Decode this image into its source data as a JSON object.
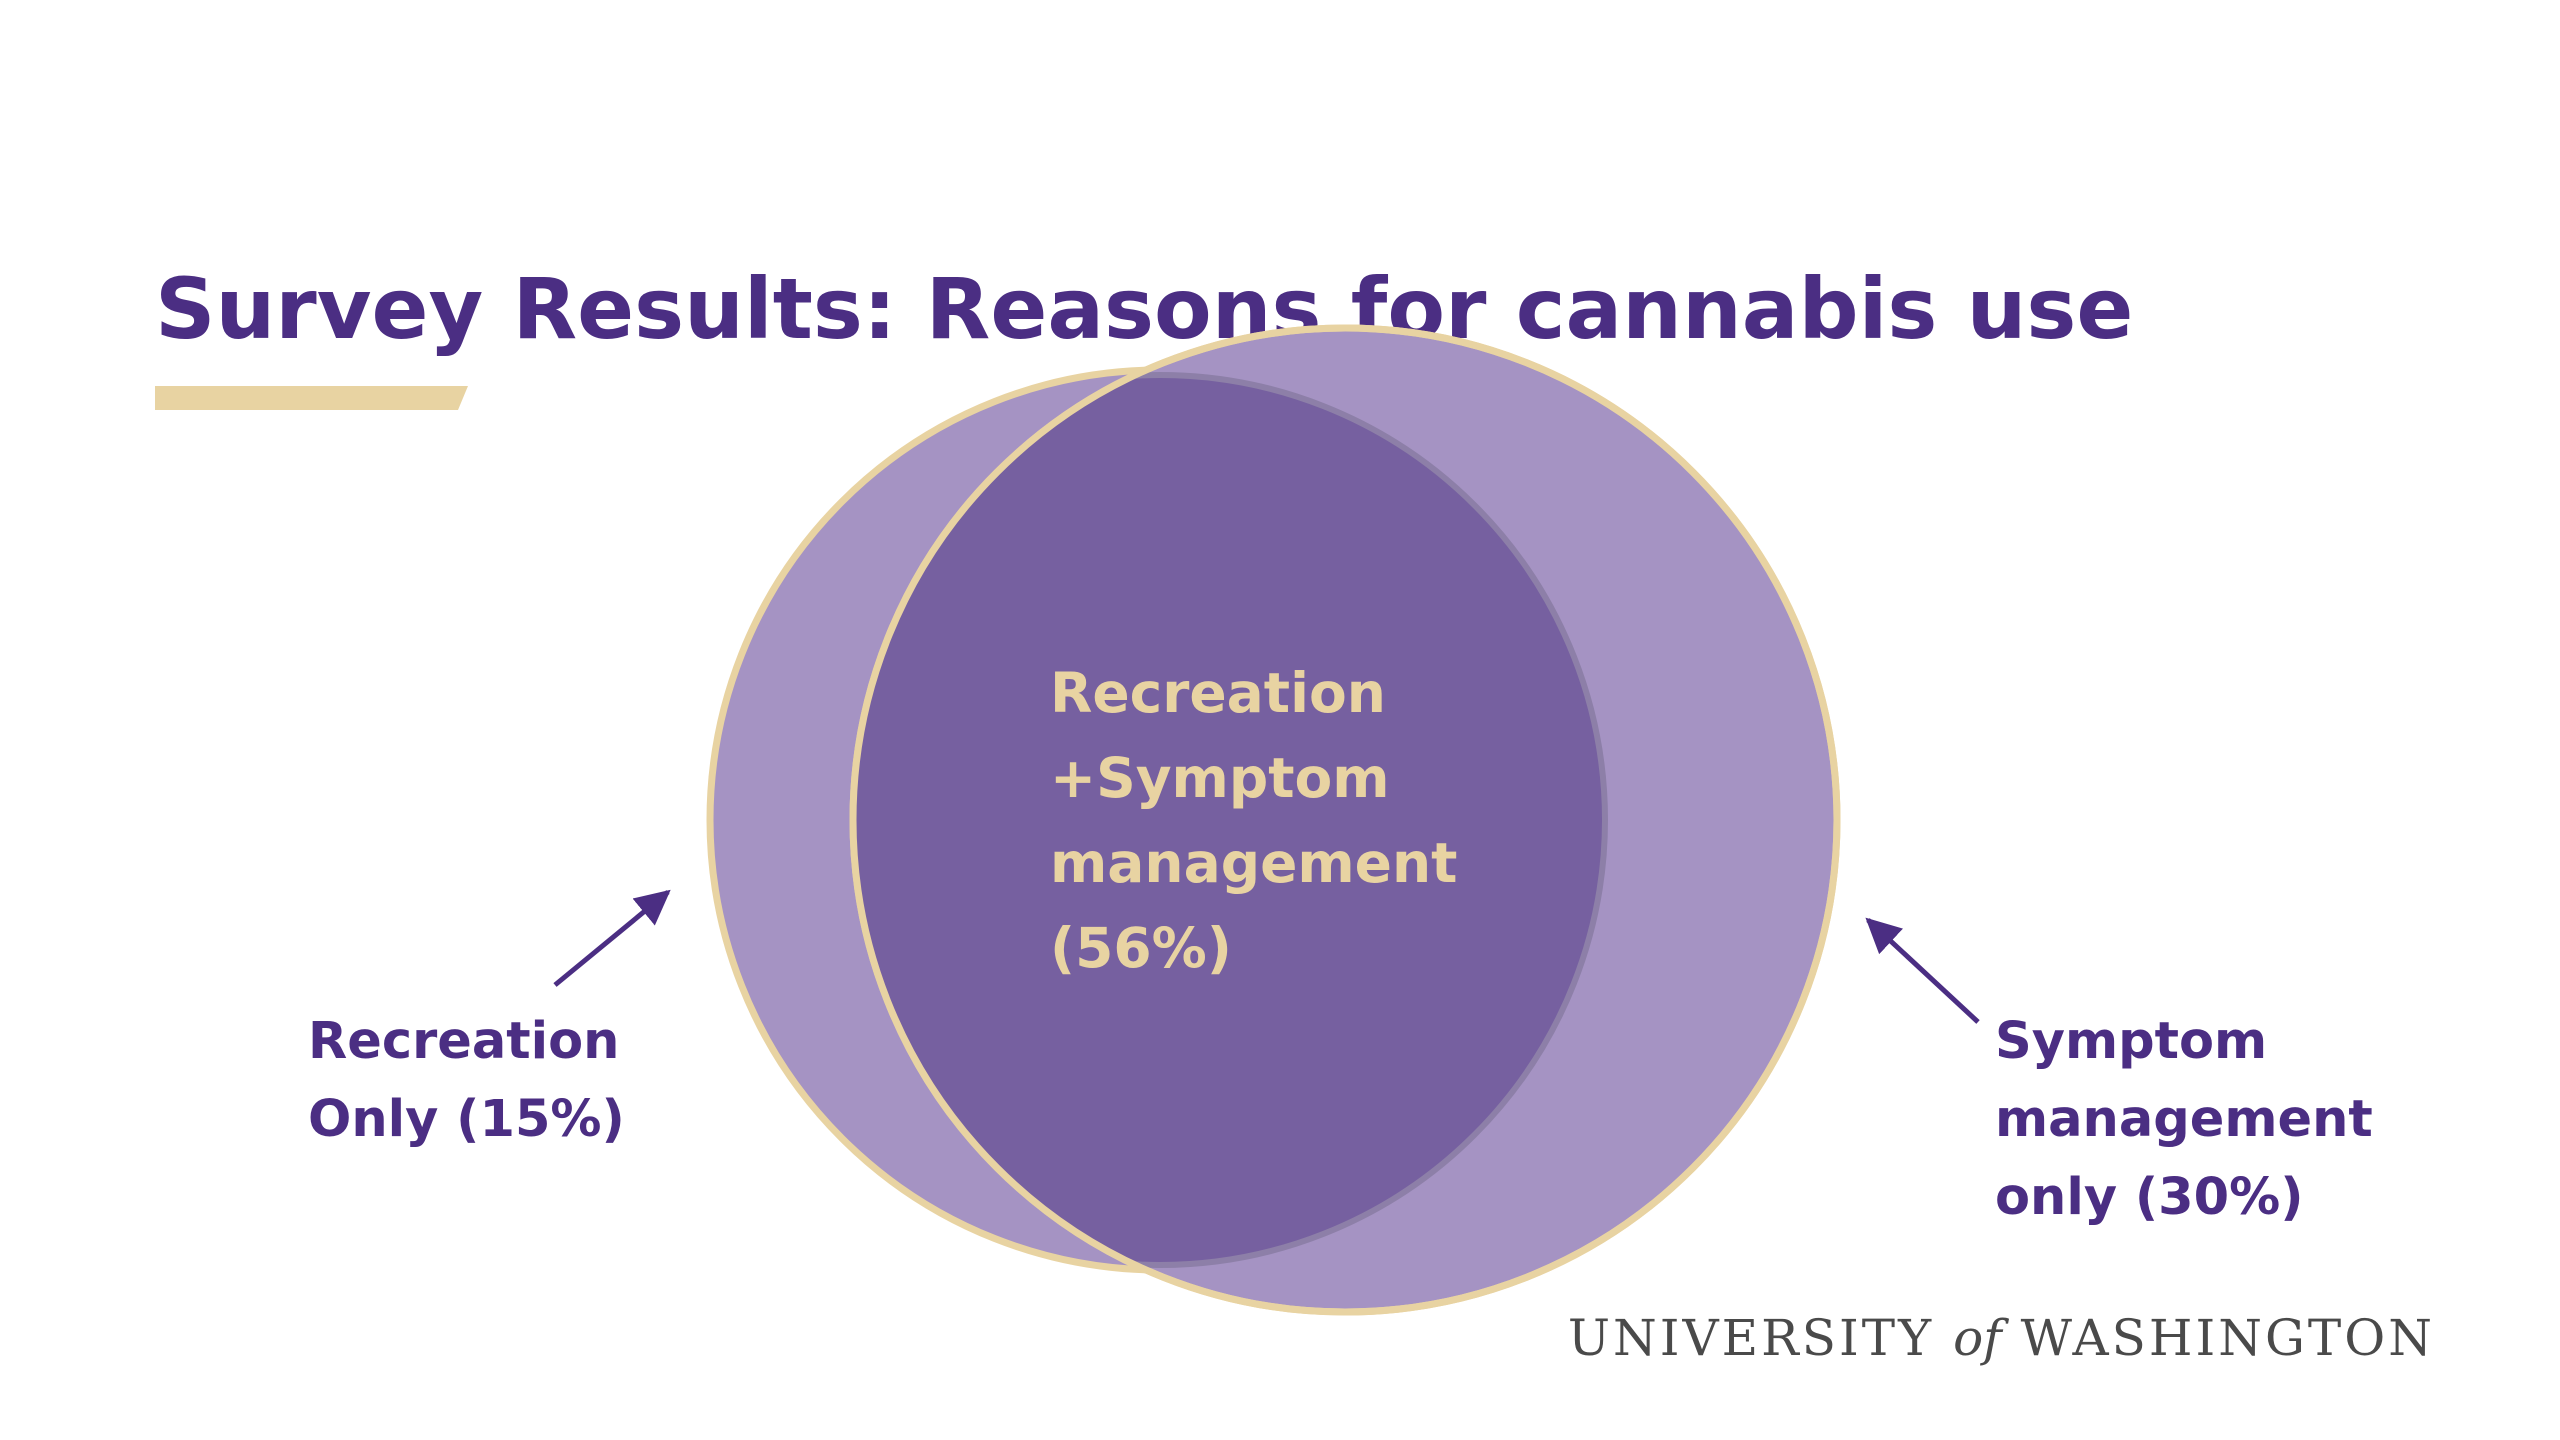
{
  "slide": {
    "title": "Survey Results: Reasons for cannabis use"
  },
  "venn": {
    "overlap_label": {
      "lines": [
        "Recreation",
        "+Symptom",
        "management",
        "(56%)"
      ]
    },
    "left_label": {
      "lines": [
        "Recreation",
        "Only (15%)"
      ]
    },
    "right_label": {
      "lines": [
        "Symptom",
        "management",
        "only (30%)"
      ]
    },
    "colors": {
      "circle_fill": "#a593c3",
      "overlap_fill": "#7660a0",
      "circle_outline": "#e8d3a2",
      "label_purple": "#4b2e83",
      "center_text": "#e8d3a2"
    }
  },
  "logo": {
    "part1": "UNIVERSITY",
    "part2": "of",
    "part3": "WASHINGTON"
  }
}
